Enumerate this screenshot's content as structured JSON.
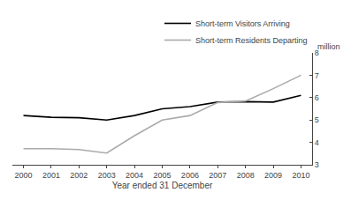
{
  "chart_data": {
    "type": "line",
    "xlabel": "Year ended 31 December",
    "ylabel": "million",
    "x": [
      2000,
      2001,
      2002,
      2003,
      2004,
      2005,
      2006,
      2007,
      2008,
      2009,
      2010
    ],
    "series": [
      {
        "name": "Short-term Visitors Arriving",
        "color": "#000000",
        "values": [
          5.2,
          5.12,
          5.1,
          5.0,
          5.2,
          5.5,
          5.6,
          5.8,
          5.82,
          5.8,
          6.1
        ]
      },
      {
        "name": "Short-term Residents Departing",
        "color": "#aaaaaa",
        "values": [
          3.72,
          3.72,
          3.68,
          3.52,
          4.3,
          5.0,
          5.2,
          5.78,
          5.85,
          6.4,
          7.0
        ]
      }
    ],
    "xlim": [
      1999.6,
      2010.4
    ],
    "xticks": [
      2000,
      2001,
      2002,
      2003,
      2004,
      2005,
      2006,
      2007,
      2008,
      2009,
      2010
    ],
    "ylim": [
      3,
      8
    ],
    "yticks": [
      3,
      4,
      5,
      6,
      7,
      8
    ],
    "grid": false,
    "legend": "upper right"
  }
}
